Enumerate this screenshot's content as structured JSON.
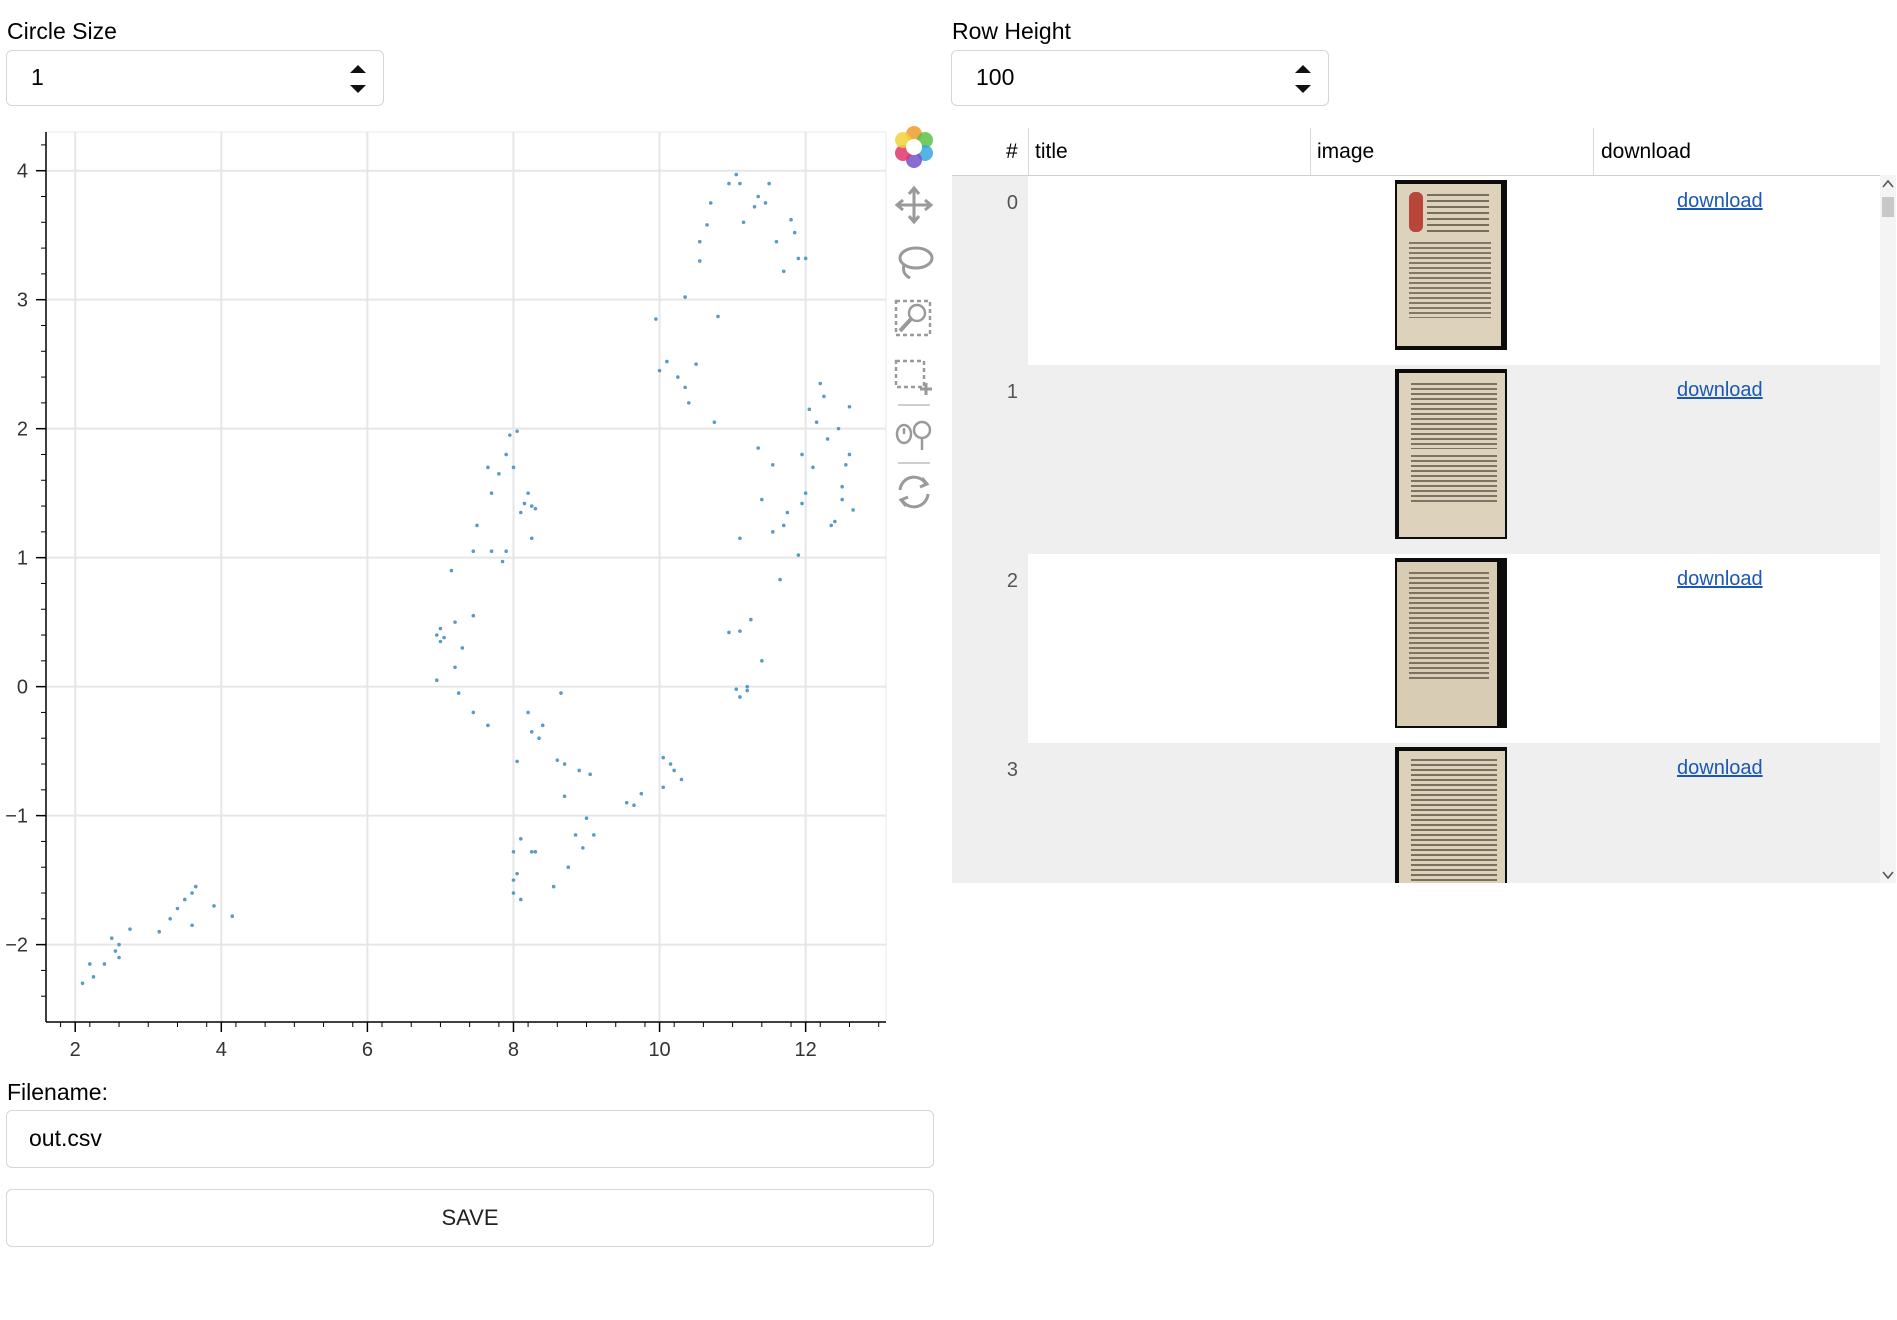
{
  "circle_size": {
    "label": "Circle Size",
    "value": "1"
  },
  "row_height": {
    "label": "Row Height",
    "value": "100"
  },
  "filename": {
    "label": "Filename:",
    "value": "out.csv"
  },
  "save_label": "SAVE",
  "toolbar": [
    "bokeh-logo-icon",
    "pan-icon",
    "lasso-select-icon",
    "wheel-zoom-icon",
    "box-select-icon",
    "hover-icon",
    "reset-icon"
  ],
  "colors": {
    "point": "#5a9bc6",
    "link": "#1a57b8",
    "grid": "#e6e6e6"
  },
  "chart_data": {
    "type": "scatter",
    "xlim": [
      1.6,
      13.1
    ],
    "ylim": [
      -2.6,
      4.3
    ],
    "x_ticks": [
      "2",
      "4",
      "6",
      "8",
      "10",
      "12"
    ],
    "y_ticks": [
      "−2",
      "−1",
      "0",
      "1",
      "2",
      "3",
      "4"
    ],
    "grid": true,
    "points": [
      [
        2.1,
        -2.3
      ],
      [
        2.2,
        -2.15
      ],
      [
        2.25,
        -2.25
      ],
      [
        2.4,
        -2.15
      ],
      [
        2.5,
        -1.95
      ],
      [
        2.55,
        -2.05
      ],
      [
        2.6,
        -2.0
      ],
      [
        2.6,
        -2.1
      ],
      [
        2.75,
        -1.88
      ],
      [
        3.15,
        -1.9
      ],
      [
        3.3,
        -1.8
      ],
      [
        3.4,
        -1.72
      ],
      [
        3.5,
        -1.65
      ],
      [
        3.6,
        -1.6
      ],
      [
        3.65,
        -1.55
      ],
      [
        3.6,
        -1.85
      ],
      [
        3.9,
        -1.7
      ],
      [
        4.15,
        -1.78
      ],
      [
        6.95,
        0.05
      ],
      [
        6.95,
        0.4
      ],
      [
        7.0,
        0.45
      ],
      [
        7.0,
        0.35
      ],
      [
        7.05,
        0.38
      ],
      [
        7.15,
        0.9
      ],
      [
        7.2,
        0.15
      ],
      [
        7.2,
        0.5
      ],
      [
        7.25,
        -0.05
      ],
      [
        7.3,
        0.3
      ],
      [
        7.45,
        0.55
      ],
      [
        7.45,
        -0.2
      ],
      [
        7.5,
        1.25
      ],
      [
        7.45,
        1.05
      ],
      [
        7.65,
        1.7
      ],
      [
        7.65,
        -0.3
      ],
      [
        7.7,
        1.5
      ],
      [
        7.7,
        1.05
      ],
      [
        7.8,
        1.65
      ],
      [
        7.85,
        0.97
      ],
      [
        7.9,
        1.8
      ],
      [
        7.9,
        1.05
      ],
      [
        7.95,
        1.95
      ],
      [
        8.0,
        1.7
      ],
      [
        8.05,
        1.98
      ],
      [
        8.05,
        -0.58
      ],
      [
        8.1,
        1.35
      ],
      [
        8.15,
        1.42
      ],
      [
        8.2,
        1.5
      ],
      [
        8.25,
        1.4
      ],
      [
        8.25,
        1.15
      ],
      [
        8.3,
        1.38
      ],
      [
        8.2,
        -0.2
      ],
      [
        8.25,
        -0.35
      ],
      [
        8.35,
        -0.4
      ],
      [
        8.4,
        -0.3
      ],
      [
        8.0,
        -1.28
      ],
      [
        8.0,
        -1.5
      ],
      [
        8.0,
        -1.6
      ],
      [
        8.05,
        -1.45
      ],
      [
        8.1,
        -1.18
      ],
      [
        8.1,
        -1.65
      ],
      [
        8.25,
        -1.28
      ],
      [
        8.3,
        -1.28
      ],
      [
        8.55,
        -1.55
      ],
      [
        8.6,
        -0.57
      ],
      [
        8.65,
        -0.05
      ],
      [
        8.7,
        -0.6
      ],
      [
        8.7,
        -0.85
      ],
      [
        8.75,
        -1.4
      ],
      [
        8.85,
        -1.15
      ],
      [
        8.9,
        -0.65
      ],
      [
        8.95,
        -1.25
      ],
      [
        9.0,
        -1.02
      ],
      [
        9.05,
        -0.68
      ],
      [
        9.1,
        -1.15
      ],
      [
        9.55,
        -0.9
      ],
      [
        9.65,
        -0.92
      ],
      [
        9.75,
        -0.83
      ],
      [
        9.95,
        2.85
      ],
      [
        10.0,
        2.45
      ],
      [
        10.05,
        -0.55
      ],
      [
        10.05,
        -0.78
      ],
      [
        10.1,
        2.52
      ],
      [
        10.15,
        -0.6
      ],
      [
        10.2,
        -0.65
      ],
      [
        10.25,
        2.4
      ],
      [
        10.3,
        -0.72
      ],
      [
        10.35,
        2.32
      ],
      [
        10.35,
        3.02
      ],
      [
        10.4,
        2.2
      ],
      [
        10.5,
        2.5
      ],
      [
        10.55,
        3.45
      ],
      [
        10.55,
        3.3
      ],
      [
        10.65,
        3.58
      ],
      [
        10.7,
        3.75
      ],
      [
        10.75,
        2.05
      ],
      [
        10.8,
        2.87
      ],
      [
        10.95,
        3.9
      ],
      [
        10.95,
        0.42
      ],
      [
        11.05,
        3.97
      ],
      [
        11.05,
        -0.02
      ],
      [
        11.1,
        3.9
      ],
      [
        11.1,
        0.43
      ],
      [
        11.1,
        -0.08
      ],
      [
        11.1,
        1.15
      ],
      [
        11.15,
        3.6
      ],
      [
        11.2,
        -0.03
      ],
      [
        11.2,
        0.0
      ],
      [
        11.25,
        0.52
      ],
      [
        11.3,
        3.72
      ],
      [
        11.35,
        3.8
      ],
      [
        11.35,
        1.85
      ],
      [
        11.4,
        0.2
      ],
      [
        11.4,
        1.45
      ],
      [
        11.45,
        3.75
      ],
      [
        11.5,
        3.9
      ],
      [
        11.55,
        1.72
      ],
      [
        11.55,
        1.2
      ],
      [
        11.6,
        3.45
      ],
      [
        11.65,
        0.83
      ],
      [
        11.7,
        1.25
      ],
      [
        11.7,
        3.22
      ],
      [
        11.75,
        1.35
      ],
      [
        11.8,
        3.62
      ],
      [
        11.85,
        3.52
      ],
      [
        11.9,
        3.32
      ],
      [
        11.9,
        1.02
      ],
      [
        11.95,
        1.8
      ],
      [
        11.95,
        1.42
      ],
      [
        12.0,
        3.32
      ],
      [
        12.0,
        1.5
      ],
      [
        12.05,
        2.15
      ],
      [
        12.1,
        1.7
      ],
      [
        12.15,
        2.05
      ],
      [
        12.2,
        2.35
      ],
      [
        12.25,
        2.25
      ],
      [
        12.3,
        1.92
      ],
      [
        12.35,
        1.25
      ],
      [
        12.4,
        1.28
      ],
      [
        12.45,
        2.0
      ],
      [
        12.5,
        1.55
      ],
      [
        12.5,
        1.45
      ],
      [
        12.55,
        1.72
      ],
      [
        12.6,
        2.17
      ],
      [
        12.6,
        1.8
      ],
      [
        12.65,
        1.37
      ]
    ]
  },
  "table": {
    "headers": {
      "index": "#",
      "title": "title",
      "image": "image",
      "download": "download"
    },
    "rows": [
      {
        "index": "0",
        "title": "",
        "download": "download"
      },
      {
        "index": "1",
        "title": "",
        "download": "download"
      },
      {
        "index": "2",
        "title": "",
        "download": "download"
      },
      {
        "index": "3",
        "title": "",
        "download": "download"
      }
    ]
  }
}
